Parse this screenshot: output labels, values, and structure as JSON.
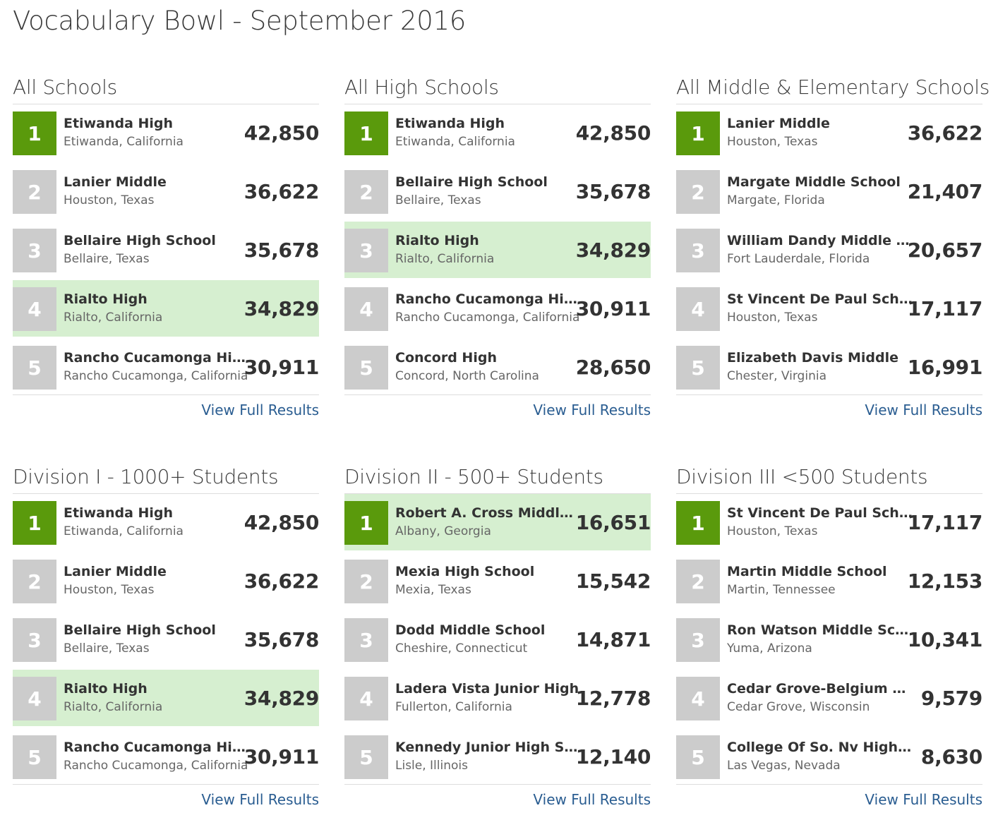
{
  "page": {
    "title": "Vocabulary Bowl - September 2016"
  },
  "boards": [
    {
      "title": "All Schools",
      "link": "View Full Results",
      "rows": [
        {
          "rank": "1",
          "name": "Etiwanda High",
          "location": "Etiwanda, California",
          "score": "42,850",
          "highlight": false
        },
        {
          "rank": "2",
          "name": "Lanier Middle",
          "location": "Houston, Texas",
          "score": "36,622",
          "highlight": false
        },
        {
          "rank": "3",
          "name": "Bellaire High School",
          "location": "Bellaire, Texas",
          "score": "35,678",
          "highlight": false
        },
        {
          "rank": "4",
          "name": "Rialto High",
          "location": "Rialto, California",
          "score": "34,829",
          "highlight": true
        },
        {
          "rank": "5",
          "name": "Rancho Cucamonga High",
          "location": "Rancho Cucamonga, California",
          "score": "30,911",
          "highlight": false
        }
      ]
    },
    {
      "title": "All High Schools",
      "link": "View Full Results",
      "rows": [
        {
          "rank": "1",
          "name": "Etiwanda High",
          "location": "Etiwanda, California",
          "score": "42,850",
          "highlight": false
        },
        {
          "rank": "2",
          "name": "Bellaire High School",
          "location": "Bellaire, Texas",
          "score": "35,678",
          "highlight": false
        },
        {
          "rank": "3",
          "name": "Rialto High",
          "location": "Rialto, California",
          "score": "34,829",
          "highlight": true
        },
        {
          "rank": "4",
          "name": "Rancho Cucamonga High",
          "location": "Rancho Cucamonga, California",
          "score": "30,911",
          "highlight": false
        },
        {
          "rank": "5",
          "name": "Concord High",
          "location": "Concord, North Carolina",
          "score": "28,650",
          "highlight": false
        }
      ]
    },
    {
      "title": "All Middle & Elementary Schools",
      "link": "View Full Results",
      "rows": [
        {
          "rank": "1",
          "name": "Lanier Middle",
          "location": "Houston, Texas",
          "score": "36,622",
          "highlight": false
        },
        {
          "rank": "2",
          "name": "Margate Middle School",
          "location": "Margate, Florida",
          "score": "21,407",
          "highlight": false
        },
        {
          "rank": "3",
          "name": "William Dandy Middle Sch...",
          "location": "Fort Lauderdale, Florida",
          "score": "20,657",
          "highlight": false
        },
        {
          "rank": "4",
          "name": "St Vincent De Paul School",
          "location": "Houston, Texas",
          "score": "17,117",
          "highlight": false
        },
        {
          "rank": "5",
          "name": "Elizabeth Davis Middle",
          "location": "Chester, Virginia",
          "score": "16,991",
          "highlight": false
        }
      ]
    },
    {
      "title": "Division I - 1000+ Students",
      "link": "View Full Results",
      "rows": [
        {
          "rank": "1",
          "name": "Etiwanda High",
          "location": "Etiwanda, California",
          "score": "42,850",
          "highlight": false
        },
        {
          "rank": "2",
          "name": "Lanier Middle",
          "location": "Houston, Texas",
          "score": "36,622",
          "highlight": false
        },
        {
          "rank": "3",
          "name": "Bellaire High School",
          "location": "Bellaire, Texas",
          "score": "35,678",
          "highlight": false
        },
        {
          "rank": "4",
          "name": "Rialto High",
          "location": "Rialto, California",
          "score": "34,829",
          "highlight": true
        },
        {
          "rank": "5",
          "name": "Rancho Cucamonga High",
          "location": "Rancho Cucamonga, California",
          "score": "30,911",
          "highlight": false
        }
      ]
    },
    {
      "title": "Division II - 500+ Students",
      "link": "View Full Results",
      "rows": [
        {
          "rank": "1",
          "name": "Robert A. Cross Middle M...",
          "location": "Albany, Georgia",
          "score": "16,651",
          "highlight": true
        },
        {
          "rank": "2",
          "name": "Mexia High School",
          "location": "Mexia, Texas",
          "score": "15,542",
          "highlight": false
        },
        {
          "rank": "3",
          "name": "Dodd Middle School",
          "location": "Cheshire, Connecticut",
          "score": "14,871",
          "highlight": false
        },
        {
          "rank": "4",
          "name": "Ladera Vista Junior High",
          "location": "Fullerton, California",
          "score": "12,778",
          "highlight": false
        },
        {
          "rank": "5",
          "name": "Kennedy Junior High School",
          "location": "Lisle, Illinois",
          "score": "12,140",
          "highlight": false
        }
      ]
    },
    {
      "title": "Division III <500 Students",
      "link": "View Full Results",
      "rows": [
        {
          "rank": "1",
          "name": "St Vincent De Paul School",
          "location": "Houston, Texas",
          "score": "17,117",
          "highlight": false
        },
        {
          "rank": "2",
          "name": "Martin Middle School",
          "location": "Martin, Tennessee",
          "score": "12,153",
          "highlight": false
        },
        {
          "rank": "3",
          "name": "Ron Watson Middle School",
          "location": "Yuma, Arizona",
          "score": "10,341",
          "highlight": false
        },
        {
          "rank": "4",
          "name": "Cedar Grove-Belgium High",
          "location": "Cedar Grove, Wisconsin",
          "score": "9,579",
          "highlight": false
        },
        {
          "rank": "5",
          "name": "College Of So. Nv High Sc...",
          "location": "Las Vegas, Nevada",
          "score": "8,630",
          "highlight": false
        }
      ]
    }
  ],
  "colors": {
    "first_rank": "#5a9a0c",
    "rank": "#cccccc",
    "highlight": "#d6efd0",
    "link": "#2a5d91"
  }
}
